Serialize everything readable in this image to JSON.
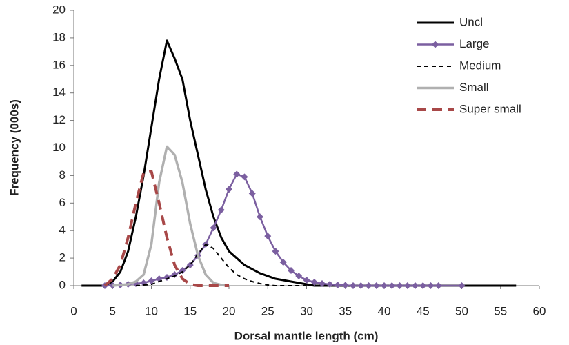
{
  "chart_data": {
    "type": "line",
    "x_label": "Dorsal mantle length (cm)",
    "y_label": "Frequency (000s)",
    "xlim": [
      0,
      60
    ],
    "xticks": [
      0,
      5,
      10,
      15,
      20,
      25,
      30,
      35,
      40,
      45,
      50,
      55,
      60
    ],
    "ylim": [
      0,
      20
    ],
    "yticks": [
      0,
      2,
      4,
      6,
      8,
      10,
      12,
      14,
      16,
      18,
      20
    ],
    "grid": false,
    "legend": "top-right",
    "series": [
      {
        "name": "Uncl",
        "color": "#000000",
        "dashed": false,
        "marker": null,
        "x": [
          1,
          4,
          5,
          6,
          7,
          8,
          9,
          10,
          11,
          12,
          13,
          14,
          15,
          16,
          17,
          18,
          19,
          20,
          21,
          22,
          23,
          24,
          25,
          26,
          27,
          28,
          29,
          30,
          31,
          57
        ],
        "values": [
          0,
          0,
          0.3,
          1,
          2.5,
          5,
          8,
          11.5,
          15,
          17.8,
          16.5,
          15,
          12,
          9.5,
          7,
          5,
          3.5,
          2.5,
          2,
          1.5,
          1.2,
          0.9,
          0.7,
          0.5,
          0.4,
          0.3,
          0.2,
          0.1,
          0,
          0
        ]
      },
      {
        "name": "Large",
        "color": "#7b5fa0",
        "dashed": false,
        "marker": "diamond",
        "x": [
          4,
          5,
          6,
          7,
          8,
          9,
          10,
          11,
          12,
          13,
          14,
          15,
          16,
          17,
          18,
          19,
          20,
          21,
          22,
          23,
          24,
          25,
          26,
          27,
          28,
          29,
          30,
          31,
          32,
          33,
          34,
          35,
          36,
          37,
          38,
          39,
          40,
          41,
          42,
          43,
          44,
          45,
          46,
          47,
          50
        ],
        "values": [
          0,
          0.02,
          0.05,
          0.1,
          0.15,
          0.2,
          0.35,
          0.5,
          0.6,
          0.8,
          1.1,
          1.5,
          2.2,
          3,
          4.2,
          5.5,
          7,
          8.1,
          7.9,
          6.7,
          5,
          3.6,
          2.5,
          1.7,
          1.1,
          0.7,
          0.4,
          0.25,
          0.15,
          0.1,
          0.05,
          0.03,
          0,
          0,
          0,
          0,
          0,
          0,
          0,
          0,
          0,
          0,
          0,
          0,
          0
        ]
      },
      {
        "name": "Medium",
        "color": "#000000",
        "dashed": true,
        "marker": null,
        "x": [
          8,
          10,
          11,
          12,
          13,
          14,
          15,
          16,
          17,
          18,
          19,
          20,
          21,
          22,
          23,
          24,
          25,
          26,
          30
        ],
        "values": [
          0,
          0.1,
          0.3,
          0.5,
          0.7,
          1,
          1.5,
          2.3,
          3,
          2.7,
          2,
          1.3,
          0.8,
          0.5,
          0.3,
          0.15,
          0.05,
          0,
          0
        ]
      },
      {
        "name": "Small",
        "color": "#b0b0b0",
        "dashed": false,
        "marker": null,
        "x": [
          5,
          6,
          7,
          8,
          9,
          10,
          11,
          12,
          13,
          14,
          15,
          16,
          17,
          18,
          19,
          20
        ],
        "values": [
          0,
          0.05,
          0.1,
          0.3,
          0.8,
          3,
          7.5,
          10.1,
          9.5,
          7.5,
          4.5,
          2.2,
          0.8,
          0.2,
          0.05,
          0
        ]
      },
      {
        "name": "Super small",
        "color": "#a84848",
        "dashed": true,
        "marker": null,
        "x": [
          4,
          5,
          6,
          7,
          8,
          9,
          10,
          11,
          12,
          13,
          14,
          15,
          16,
          20
        ],
        "values": [
          0,
          0.5,
          1.5,
          3.5,
          6,
          8.2,
          8.3,
          6,
          3.5,
          1.5,
          0.5,
          0.1,
          0,
          0
        ]
      }
    ]
  }
}
